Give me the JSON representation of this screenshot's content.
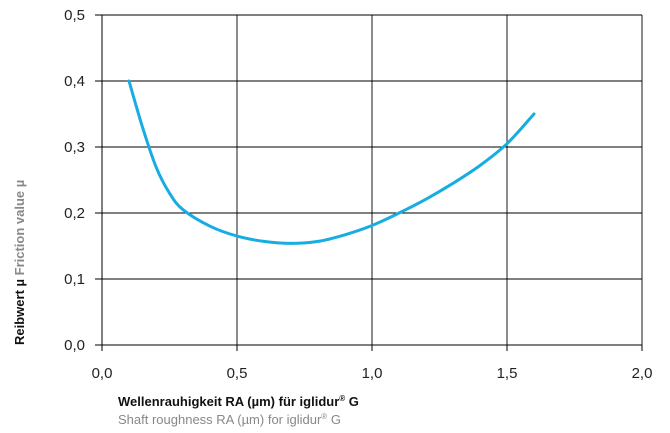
{
  "chart_data": {
    "type": "line",
    "title": "",
    "xlabel": {
      "primary": "Wellenrauhigkeit RA (µm) für iglidur",
      "primary_sup": "®",
      "primary_suffix": " G",
      "secondary": "Shaft roughness RA (µm) for iglidur",
      "secondary_sup": "®",
      "secondary_suffix": " G"
    },
    "ylabel": {
      "primary": "Reibwert µ",
      "secondary": " Friction value  µ"
    },
    "xlim": [
      0,
      2
    ],
    "ylim": [
      0,
      0.5
    ],
    "xticks": [
      {
        "value": 0.0,
        "label": "0,0"
      },
      {
        "value": 0.5,
        "label": "0,5"
      },
      {
        "value": 1.0,
        "label": "1,0"
      },
      {
        "value": 1.5,
        "label": "1,5"
      },
      {
        "value": 2.0,
        "label": "2,0"
      }
    ],
    "yticks": [
      {
        "value": 0.0,
        "label": "0,0"
      },
      {
        "value": 0.1,
        "label": "0,1"
      },
      {
        "value": 0.2,
        "label": "0,2"
      },
      {
        "value": 0.3,
        "label": "0,3"
      },
      {
        "value": 0.4,
        "label": "0,4"
      },
      {
        "value": 0.5,
        "label": "0,5"
      }
    ],
    "grid": true,
    "series": [
      {
        "color": "#18ade2",
        "x": [
          0.1,
          0.15,
          0.2,
          0.25,
          0.3,
          0.4,
          0.5,
          0.6,
          0.7,
          0.8,
          0.9,
          1.0,
          1.1,
          1.2,
          1.3,
          1.4,
          1.5,
          1.6
        ],
        "y": [
          0.4,
          0.33,
          0.27,
          0.23,
          0.205,
          0.18,
          0.165,
          0.157,
          0.154,
          0.157,
          0.167,
          0.181,
          0.2,
          0.221,
          0.245,
          0.272,
          0.305,
          0.35
        ]
      }
    ]
  }
}
